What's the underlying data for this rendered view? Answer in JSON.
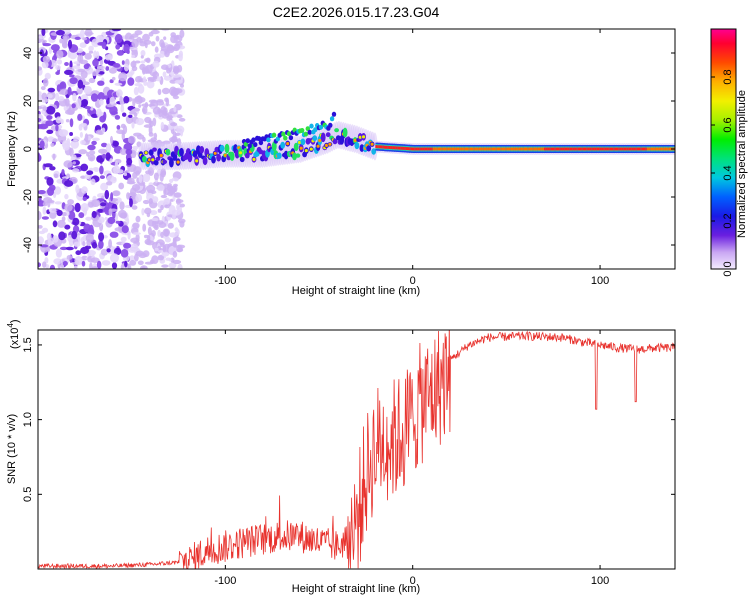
{
  "figure_title": "C2E2.2026.015.17.23.G04",
  "chart_data": [
    {
      "type": "heatmap",
      "title": "C2E2.2026.015.17.23.G04",
      "xlabel": "Height of straight line (km)",
      "ylabel": "Frequency (Hz)",
      "xlim": [
        -200,
        140
      ],
      "ylim": [
        -50,
        50
      ],
      "xticks": [
        -100,
        0,
        100
      ],
      "yticks": [
        -40,
        -20,
        0,
        20,
        40
      ],
      "colorbar": {
        "label": "Normalized spectral amplitude",
        "range": [
          0,
          1
        ],
        "ticks": [
          0.0,
          0.2,
          0.4,
          0.6,
          0.8
        ]
      },
      "ridge": [
        {
          "x": -145,
          "freq": -3
        },
        {
          "x": -125,
          "freq": -3
        },
        {
          "x": -100,
          "freq": -2
        },
        {
          "x": -80,
          "freq": -2
        },
        {
          "x": -60,
          "freq": 0
        },
        {
          "x": -45,
          "freq": 4
        },
        {
          "x": -40,
          "freq": 6
        },
        {
          "x": -30,
          "freq": 4
        },
        {
          "x": -20,
          "freq": 1
        },
        {
          "x": 0,
          "freq": 0
        },
        {
          "x": 140,
          "freq": 0
        }
      ],
      "upper_branch": [
        {
          "x": -90,
          "freq": 2
        },
        {
          "x": -70,
          "freq": 5
        },
        {
          "x": -55,
          "freq": 8
        },
        {
          "x": -45,
          "freq": 10
        },
        {
          "x": -42,
          "freq": 13
        }
      ],
      "noise_region_x": [
        -200,
        -123
      ]
    },
    {
      "type": "line",
      "xlabel": "Height of straight line (km)",
      "ylabel": "SNR (10 * v/v)",
      "y_multiplier": "(x10",
      "y_multiplier_exp": "4",
      "y_multiplier_close": ")",
      "xlim": [
        -200,
        140
      ],
      "ylim": [
        0,
        1.6
      ],
      "xticks": [
        -100,
        0,
        100
      ],
      "yticks": [
        0.5,
        1.0,
        1.5
      ],
      "series": [
        {
          "name": "SNR",
          "color": "#e8322d",
          "points": [
            [
              -200,
              0.02
            ],
            [
              -160,
              0.02
            ],
            [
              -140,
              0.03
            ],
            [
              -120,
              0.05
            ],
            [
              -110,
              0.12
            ],
            [
              -100,
              0.15
            ],
            [
              -90,
              0.18
            ],
            [
              -80,
              0.2
            ],
            [
              -70,
              0.22
            ],
            [
              -60,
              0.22
            ],
            [
              -50,
              0.18
            ],
            [
              -40,
              0.15
            ],
            [
              -35,
              0.2
            ],
            [
              -30,
              0.4
            ],
            [
              -25,
              0.7
            ],
            [
              -20,
              0.9
            ],
            [
              -15,
              0.95
            ],
            [
              -10,
              0.95
            ],
            [
              -5,
              1.0
            ],
            [
              0,
              1.1
            ],
            [
              5,
              1.2
            ],
            [
              10,
              1.25
            ],
            [
              20,
              1.4
            ],
            [
              30,
              1.5
            ],
            [
              40,
              1.55
            ],
            [
              60,
              1.56
            ],
            [
              80,
              1.55
            ],
            [
              90,
              1.52
            ],
            [
              100,
              1.5
            ],
            [
              110,
              1.48
            ],
            [
              120,
              1.47
            ],
            [
              130,
              1.48
            ],
            [
              140,
              1.48
            ]
          ],
          "dips": [
            [
              98,
              1.07
            ],
            [
              119,
              1.12
            ]
          ]
        }
      ]
    }
  ]
}
